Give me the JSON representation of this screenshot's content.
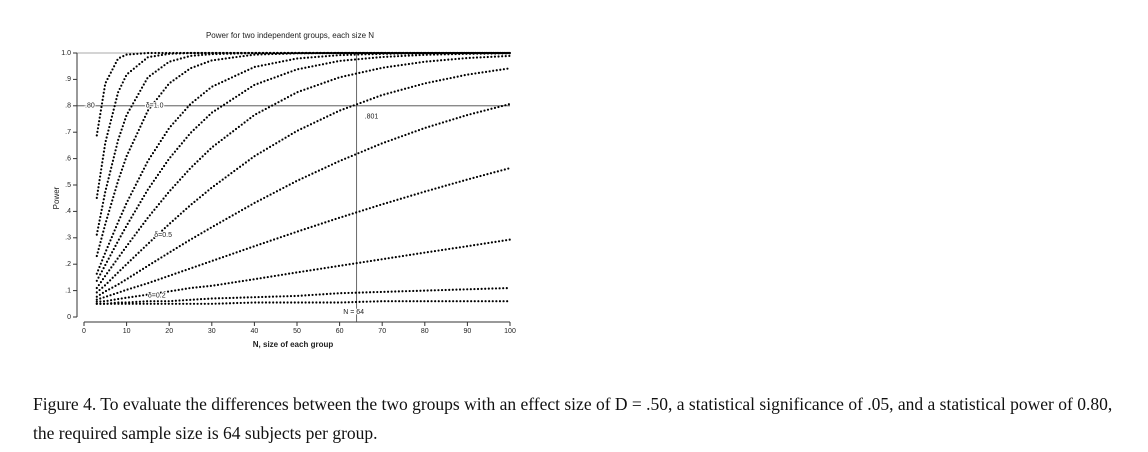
{
  "chart_data": {
    "type": "line",
    "title": "Power for two independent groups, each size N",
    "xlabel": "N, size of each group",
    "ylabel": "Power",
    "x": [
      3,
      5,
      8,
      10,
      15,
      20,
      25,
      30,
      40,
      50,
      60,
      70,
      80,
      90,
      100
    ],
    "series": [
      {
        "color": "#000000",
        "values": [
          0.05,
          0.05,
          0.05,
          0.05,
          0.05,
          0.05,
          0.05,
          0.05,
          0.055,
          0.055,
          0.055,
          0.06,
          0.06,
          0.06,
          0.06
        ]
      },
      {
        "color": "#000000",
        "values": [
          0.05,
          0.05,
          0.055,
          0.055,
          0.06,
          0.06,
          0.065,
          0.07,
          0.075,
          0.08,
          0.09,
          0.095,
          0.1,
          0.105,
          0.11
        ]
      },
      {
        "color": "#000000",
        "values": [
          0.058,
          0.06,
          0.068,
          0.073,
          0.085,
          0.097,
          0.11,
          0.118,
          0.143,
          0.169,
          0.194,
          0.219,
          0.244,
          0.268,
          0.293
        ]
      },
      {
        "color": "#000000",
        "values": [
          0.066,
          0.076,
          0.092,
          0.103,
          0.128,
          0.156,
          0.184,
          0.212,
          0.268,
          0.323,
          0.376,
          0.427,
          0.475,
          0.521,
          0.564
        ]
      },
      {
        "color": "#000000",
        "values": [
          0.077,
          0.097,
          0.123,
          0.143,
          0.194,
          0.244,
          0.293,
          0.34,
          0.432,
          0.516,
          0.591,
          0.658,
          0.716,
          0.765,
          0.807
        ]
      },
      {
        "color": "#000000",
        "values": [
          0.093,
          0.121,
          0.169,
          0.2,
          0.277,
          0.352,
          0.424,
          0.49,
          0.609,
          0.705,
          0.782,
          0.841,
          0.885,
          0.918,
          0.942
        ]
      },
      {
        "color": "#000000",
        "values": [
          0.11,
          0.156,
          0.224,
          0.268,
          0.376,
          0.475,
          0.564,
          0.642,
          0.765,
          0.851,
          0.908,
          0.944,
          0.967,
          0.981,
          0.989
        ]
      },
      {
        "color": "#000000",
        "values": [
          0.137,
          0.197,
          0.288,
          0.346,
          0.483,
          0.6,
          0.697,
          0.774,
          0.879,
          0.938,
          0.97,
          0.985,
          0.993,
          0.997,
          0.999
        ]
      },
      {
        "color": "#000000",
        "values": [
          0.164,
          0.244,
          0.359,
          0.432,
          0.591,
          0.716,
          0.807,
          0.872,
          0.947,
          0.979,
          0.992,
          0.997,
          0.999,
          1.0,
          1.0
        ]
      },
      {
        "color": "#000000",
        "values": [
          0.231,
          0.352,
          0.516,
          0.609,
          0.782,
          0.885,
          0.942,
          0.972,
          0.994,
          0.999,
          1.0,
          1.0,
          1.0,
          1.0,
          1.0
        ]
      },
      {
        "color": "#000000",
        "values": [
          0.312,
          0.475,
          0.67,
          0.765,
          0.908,
          0.967,
          0.989,
          0.996,
          1.0,
          1.0,
          1.0,
          1.0,
          1.0,
          1.0,
          1.0
        ]
      },
      {
        "color": "#000000",
        "values": [
          0.451,
          0.66,
          0.851,
          0.918,
          0.984,
          0.997,
          1.0,
          1.0,
          1.0,
          1.0,
          1.0,
          1.0,
          1.0,
          1.0,
          1.0
        ]
      },
      {
        "color": "#000000",
        "values": [
          0.688,
          0.885,
          0.979,
          0.994,
          1.0,
          1.0,
          1.0,
          1.0,
          1.0,
          1.0,
          1.0,
          1.0,
          1.0,
          1.0,
          1.0
        ]
      }
    ],
    "xlim": [
      0,
      100
    ],
    "ylim": [
      0,
      1
    ],
    "xticks": [
      0,
      10,
      20,
      30,
      40,
      50,
      60,
      70,
      80,
      90,
      100
    ],
    "yticks": [
      {
        "value": 0,
        "label": "0"
      },
      {
        "value": 0.1,
        "label": ".1"
      },
      {
        "value": 0.2,
        "label": ".2"
      },
      {
        "value": 0.3,
        "label": ".3"
      },
      {
        "value": 0.4,
        "label": ".4"
      },
      {
        "value": 0.5,
        "label": ".5"
      },
      {
        "value": 0.6,
        "label": ".6"
      },
      {
        "value": 0.7,
        "label": ".7"
      },
      {
        "value": 0.8,
        "label": ".8"
      },
      {
        "value": 0.9,
        "label": ".9"
      },
      {
        "value": 1,
        "label": "1.0"
      }
    ],
    "reference_y": 0.8,
    "reference_x": 64,
    "annotations": [
      ".80",
      ".801",
      "N = 64",
      "δ=1.0",
      "δ=0.5",
      "δ=0.2"
    ],
    "grid": false
  },
  "caption": "Figure 4. To evaluate the differences between the two groups with an effect size of D = .50, a statistical significance of .05, and a statistical power of 0.80, the required sample size is 64 subjects per group."
}
